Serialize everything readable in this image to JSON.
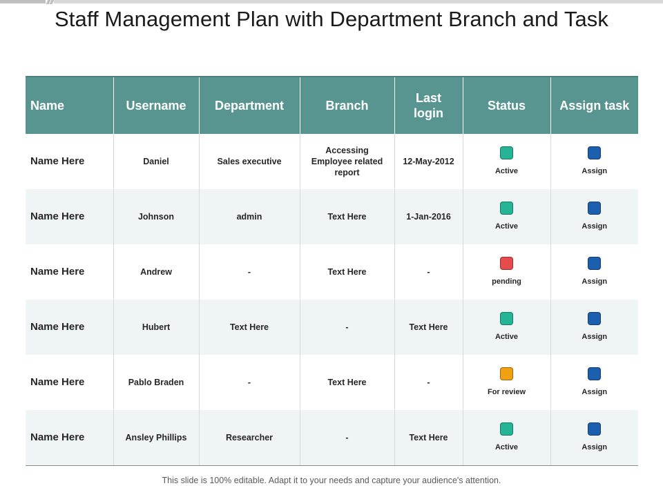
{
  "slide": {
    "title": "Staff Management Plan with Department Branch and Task",
    "footer": "This slide is 100% editable. Adapt it to your needs and capture your audience's attention."
  },
  "colors": {
    "header_bg": "#599590",
    "row_alt_bg": "#eef5f4",
    "status_active": "#25b596",
    "status_pending": "#e84b4b",
    "status_review": "#f0a010",
    "assign": "#1c5fae"
  },
  "table": {
    "headers": [
      "Name",
      "Username",
      "Department",
      "Branch",
      "Last login",
      "Status",
      "Assign task"
    ],
    "rows": [
      {
        "name": "Name Here",
        "username": "Daniel",
        "department": "Sales executive",
        "branch": "Accessing Employee related report",
        "last_login": "12-May-2012",
        "status": "Active",
        "status_color": "#25b596",
        "assign": "Assign"
      },
      {
        "name": "Name Here",
        "username": "Johnson",
        "department": "admin",
        "branch": "Text Here",
        "last_login": "1-Jan-2016",
        "status": "Active",
        "status_color": "#25b596",
        "assign": "Assign"
      },
      {
        "name": "Name Here",
        "username": "Andrew",
        "department": "-",
        "branch": "Text Here",
        "last_login": "-",
        "status": "pending",
        "status_color": "#e84b4b",
        "assign": "Assign"
      },
      {
        "name": "Name Here",
        "username": "Hubert",
        "department": "Text Here",
        "branch": "-",
        "last_login": "Text Here",
        "status": "Active",
        "status_color": "#25b596",
        "assign": "Assign"
      },
      {
        "name": "Name Here",
        "username": "Pablo Braden",
        "department": "-",
        "branch": "Text Here",
        "last_login": "-",
        "status": "For review",
        "status_color": "#f0a010",
        "assign": "Assign"
      },
      {
        "name": "Name Here",
        "username": "Ansley Phillips",
        "department": "Researcher",
        "branch": "-",
        "last_login": "Text Here",
        "status": "Active",
        "status_color": "#25b596",
        "assign": "Assign"
      }
    ]
  }
}
